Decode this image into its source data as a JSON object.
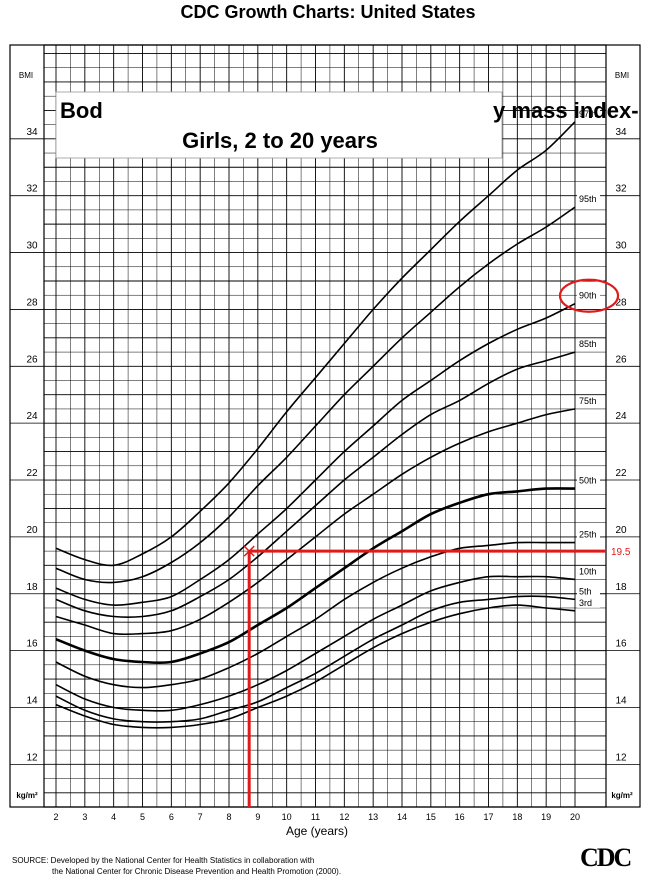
{
  "header": {
    "title": "CDC Growth Charts: United States"
  },
  "chart_data": {
    "type": "line",
    "title_left": "Bod",
    "title_right": "y mass index-",
    "subtitle": "Girls, 2 to 20 years",
    "xlabel": "Age (years)",
    "y_unit_top": "BMI",
    "y_unit_bottom": "kg/m²",
    "xlim": [
      2,
      20
    ],
    "ylim": [
      10.5,
      37.3
    ],
    "x_ticks": [
      2,
      3,
      4,
      5,
      6,
      7,
      8,
      9,
      10,
      11,
      12,
      13,
      14,
      15,
      16,
      17,
      18,
      19,
      20
    ],
    "y_ticks": [
      12,
      14,
      16,
      18,
      20,
      22,
      24,
      26,
      28,
      30,
      32,
      34
    ],
    "grid": true,
    "x": [
      2,
      3,
      4,
      5,
      6,
      7,
      8,
      9,
      10,
      11,
      12,
      13,
      14,
      15,
      16,
      17,
      18,
      19,
      20
    ],
    "series": [
      {
        "name": "3rd",
        "values": [
          14.1,
          13.7,
          13.4,
          13.3,
          13.3,
          13.4,
          13.6,
          14.0,
          14.4,
          14.9,
          15.5,
          16.1,
          16.6,
          17.0,
          17.3,
          17.5,
          17.6,
          17.5,
          17.4
        ]
      },
      {
        "name": "5th",
        "values": [
          14.4,
          13.9,
          13.6,
          13.5,
          13.5,
          13.6,
          13.9,
          14.2,
          14.7,
          15.2,
          15.8,
          16.4,
          16.9,
          17.4,
          17.7,
          17.8,
          17.9,
          17.9,
          17.8
        ]
      },
      {
        "name": "10th",
        "values": [
          14.8,
          14.3,
          14.0,
          13.9,
          13.9,
          14.1,
          14.4,
          14.8,
          15.3,
          15.9,
          16.5,
          17.1,
          17.6,
          18.1,
          18.4,
          18.6,
          18.6,
          18.6,
          18.5
        ]
      },
      {
        "name": "25th",
        "values": [
          15.6,
          15.1,
          14.8,
          14.7,
          14.8,
          15.0,
          15.4,
          15.9,
          16.5,
          17.1,
          17.8,
          18.4,
          18.9,
          19.3,
          19.6,
          19.7,
          19.8,
          19.8,
          19.8
        ]
      },
      {
        "name": "50th",
        "values": [
          16.4,
          16.0,
          15.7,
          15.6,
          15.6,
          15.9,
          16.3,
          16.9,
          17.5,
          18.2,
          18.9,
          19.6,
          20.2,
          20.8,
          21.2,
          21.5,
          21.6,
          21.7,
          21.7
        ]
      },
      {
        "name": "75th",
        "values": [
          17.2,
          16.9,
          16.6,
          16.6,
          16.7,
          17.1,
          17.7,
          18.4,
          19.2,
          20.0,
          20.8,
          21.5,
          22.2,
          22.8,
          23.3,
          23.7,
          24.0,
          24.3,
          24.5
        ]
      },
      {
        "name": "85th",
        "values": [
          17.8,
          17.4,
          17.2,
          17.2,
          17.4,
          17.9,
          18.5,
          19.3,
          20.2,
          21.1,
          22.0,
          22.8,
          23.6,
          24.3,
          24.8,
          25.4,
          25.9,
          26.2,
          26.5
        ]
      },
      {
        "name": "90th",
        "values": [
          18.2,
          17.8,
          17.6,
          17.7,
          17.9,
          18.5,
          19.2,
          20.1,
          21.0,
          22.0,
          23.0,
          23.9,
          24.8,
          25.5,
          26.2,
          26.8,
          27.3,
          27.7,
          28.2
        ]
      },
      {
        "name": "95th",
        "values": [
          18.9,
          18.5,
          18.4,
          18.6,
          19.1,
          19.8,
          20.7,
          21.8,
          22.8,
          23.9,
          25.0,
          26.0,
          27.0,
          27.9,
          28.8,
          29.6,
          30.3,
          30.9,
          31.6
        ]
      },
      {
        "name": "97th",
        "values": [
          19.6,
          19.2,
          19.0,
          19.4,
          20.0,
          20.9,
          21.9,
          23.1,
          24.4,
          25.6,
          26.8,
          28.0,
          29.1,
          30.1,
          31.1,
          32.0,
          32.9,
          33.6,
          34.6
        ]
      }
    ],
    "annotations": {
      "marker_age": 8.7,
      "marker_bmi": 19.5,
      "marker_label": "19.5",
      "highlighted_series": "90th",
      "annotation_color": "#e01a1a"
    }
  },
  "footer": {
    "source_line1": "SOURCE: Developed by the National Center for Health Statistics in collaboration with",
    "source_line2": "the National Center for Chronic Disease Prevention and Health Promotion (2000).",
    "logo_text": "CDC"
  }
}
